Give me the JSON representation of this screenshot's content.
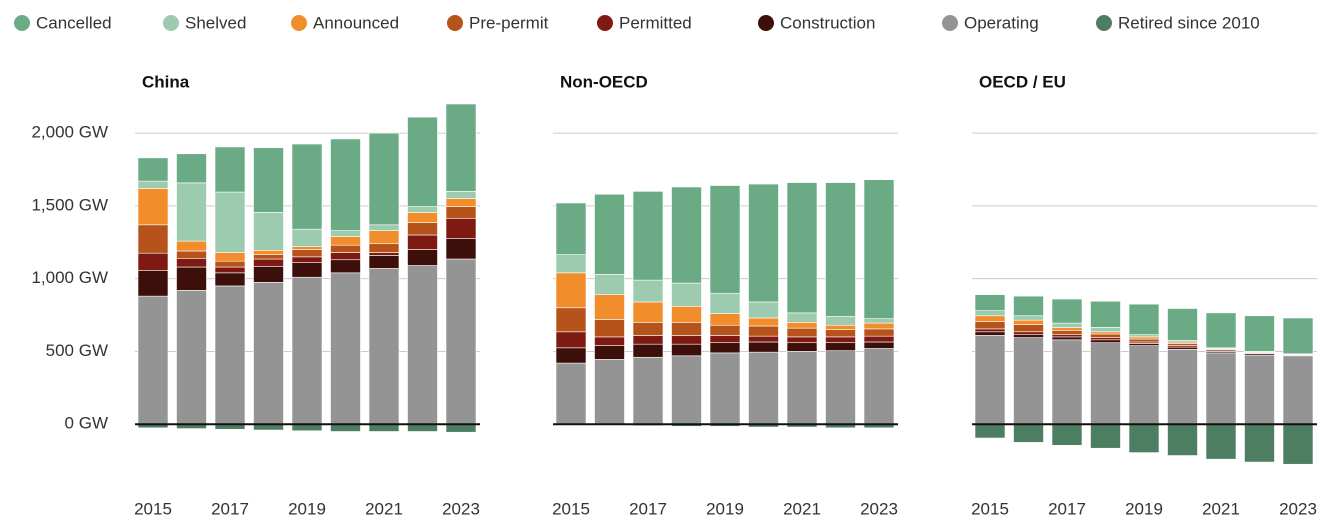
{
  "legend": [
    {
      "name": "Cancelled",
      "color": "#6aab86"
    },
    {
      "name": "Shelved",
      "color": "#9ccbb0"
    },
    {
      "name": "Announced",
      "color": "#f28d2c"
    },
    {
      "name": "Pre-permit",
      "color": "#b5531a"
    },
    {
      "name": "Permitted",
      "color": "#7e1a12"
    },
    {
      "name": "Construction",
      "color": "#3d0f0b"
    },
    {
      "name": "Operating",
      "color": "#949494"
    },
    {
      "name": "Retired since 2010",
      "color": "#4e7e62"
    }
  ],
  "ylim": [
    -500,
    2200
  ],
  "yticks": [
    {
      "value": 0,
      "label": "0 GW"
    },
    {
      "value": 500,
      "label": "500 GW"
    },
    {
      "value": 1000,
      "label": "1,000 GW"
    },
    {
      "value": 1500,
      "label": "1,500 GW"
    },
    {
      "value": 2000,
      "label": "2,000 GW"
    }
  ],
  "chart_data": [
    {
      "type": "bar",
      "stacked": true,
      "title": "China",
      "categories": [
        "2015",
        null,
        "2017",
        null,
        "2019",
        null,
        "2021",
        null,
        "2023"
      ],
      "series": [
        {
          "values": [
            160,
            200,
            310,
            445,
            585,
            630,
            630,
            615,
            600
          ]
        },
        {
          "values": [
            50,
            400,
            415,
            260,
            120,
            40,
            40,
            40,
            50
          ]
        },
        {
          "values": [
            250,
            68,
            60,
            30,
            20,
            60,
            90,
            70,
            55
          ]
        },
        {
          "values": [
            195,
            50,
            40,
            30,
            50,
            50,
            60,
            85,
            80
          ]
        },
        {
          "values": [
            120,
            60,
            40,
            50,
            40,
            50,
            20,
            100,
            140
          ]
        },
        {
          "values": [
            175,
            160,
            90,
            110,
            100,
            90,
            90,
            110,
            140
          ]
        },
        {
          "values": [
            880,
            920,
            950,
            975,
            1010,
            1040,
            1070,
            1090,
            1135
          ]
        },
        {
          "values": [
            -25,
            -30,
            -35,
            -40,
            -45,
            -50,
            -50,
            -50,
            -55
          ]
        }
      ]
    },
    {
      "type": "bar",
      "stacked": true,
      "title": "Non-OECD",
      "categories": [
        "2015",
        null,
        "2017",
        null,
        "2019",
        null,
        "2021",
        null,
        "2023"
      ],
      "series": [
        {
          "values": [
            355,
            550,
            610,
            660,
            740,
            810,
            895,
            920,
            955
          ]
        },
        {
          "values": [
            125,
            140,
            150,
            160,
            140,
            110,
            65,
            60,
            30
          ]
        },
        {
          "values": [
            240,
            170,
            140,
            110,
            80,
            55,
            40,
            30,
            40
          ]
        },
        {
          "values": [
            165,
            120,
            90,
            90,
            70,
            70,
            60,
            50,
            50
          ]
        },
        {
          "values": [
            110,
            60,
            60,
            60,
            50,
            40,
            40,
            40,
            40
          ]
        },
        {
          "values": [
            105,
            95,
            90,
            80,
            70,
            70,
            60,
            55,
            45
          ]
        },
        {
          "values": [
            420,
            445,
            460,
            470,
            490,
            495,
            500,
            505,
            520
          ]
        },
        {
          "values": [
            -5,
            -5,
            -10,
            -15,
            -15,
            -20,
            -20,
            -25,
            -25
          ]
        }
      ]
    },
    {
      "type": "bar",
      "stacked": true,
      "title": "OECD / EU",
      "categories": [
        "2015",
        null,
        "2017",
        null,
        "2019",
        null,
        "2021",
        null,
        "2023"
      ],
      "series": [
        {
          "values": [
            110,
            135,
            165,
            180,
            210,
            220,
            240,
            245,
            246
          ]
        },
        {
          "values": [
            35,
            30,
            30,
            30,
            15,
            10,
            5,
            2,
            2
          ]
        },
        {
          "values": [
            40,
            30,
            20,
            15,
            15,
            10,
            5,
            3,
            2
          ]
        },
        {
          "values": [
            50,
            50,
            30,
            25,
            20,
            15,
            5,
            5,
            2
          ]
        },
        {
          "values": [
            20,
            20,
            15,
            15,
            10,
            10,
            10,
            5,
            3
          ]
        },
        {
          "values": [
            25,
            20,
            20,
            20,
            15,
            15,
            10,
            10,
            5
          ]
        },
        {
          "values": [
            610,
            595,
            580,
            560,
            540,
            515,
            490,
            475,
            470
          ]
        },
        {
          "values": [
            -95,
            -125,
            -145,
            -165,
            -195,
            -215,
            -240,
            -260,
            -275
          ]
        }
      ]
    }
  ]
}
